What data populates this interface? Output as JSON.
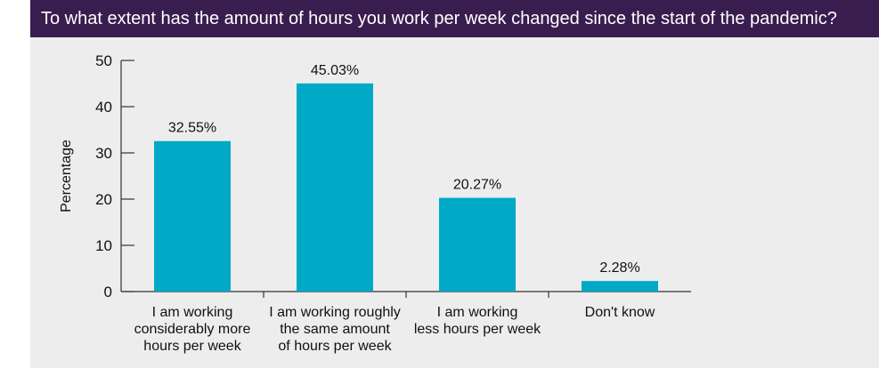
{
  "header": {
    "title": "To what extent has the amount of hours you work per week changed since the start of the pandemic?"
  },
  "colors": {
    "header_bg": "#3a1d4f",
    "panel_bg": "#ededed",
    "bar": "#00a9c6"
  },
  "chart_data": {
    "type": "bar",
    "title": "To what extent has the amount of hours you work per week changed since the start of the pandemic?",
    "categories": [
      "I am working considerably more hours per week",
      "I am working roughly the same amount of hours per week",
      "I am working less hours per week",
      "Don't know"
    ],
    "category_label_lines": [
      [
        "I am working",
        "considerably more",
        "hours per week"
      ],
      [
        "I am working roughly",
        "the same amount",
        "of hours per week"
      ],
      [
        "I am working",
        "less hours per week"
      ],
      [
        "Don't know"
      ]
    ],
    "values": [
      32.55,
      45.03,
      20.27,
      2.28
    ],
    "data_labels": [
      "32.55%",
      "45.03%",
      "20.27%",
      "2.28%"
    ],
    "xlabel": "",
    "ylabel": "Percentage",
    "ylim": [
      0,
      50
    ],
    "yticks": [
      0,
      10,
      20,
      30,
      40,
      50
    ],
    "grid": false,
    "legend": "none"
  }
}
